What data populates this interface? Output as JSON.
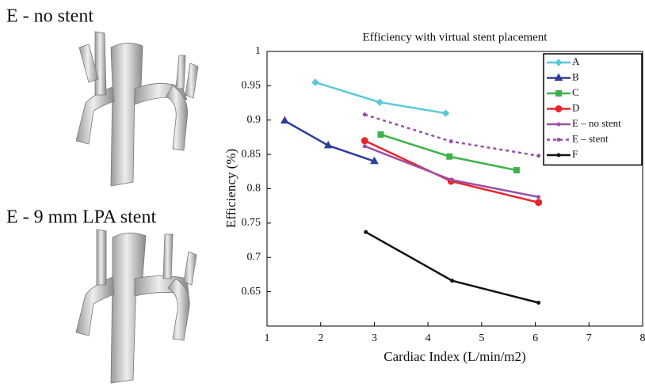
{
  "panel_labels": [
    "E - no stent",
    "E - 9 mm LPA stent"
  ],
  "chart_data": {
    "type": "line",
    "title": "Efficiency with virtual stent placement",
    "x_label": "Cardiac Index (L/min/m2)",
    "y_label": "Efficiency (%)",
    "xlim": [
      1,
      8
    ],
    "xticks": [
      1,
      2,
      3,
      4,
      5,
      6,
      7,
      8
    ],
    "ylim": [
      0.6,
      1
    ],
    "yticks": [
      0.65,
      0.7,
      0.75,
      0.8,
      0.85,
      0.9,
      0.95,
      1
    ],
    "legend": "upper right",
    "series": [
      {
        "name": "A",
        "color": "#5bc8d8",
        "marker": "diamond",
        "dashed": false,
        "x": [
          1.9,
          3.1,
          4.33
        ],
        "values": [
          0.955,
          0.926,
          0.91
        ]
      },
      {
        "name": "B",
        "color": "#2e3d9a",
        "marker": "triangle",
        "dashed": false,
        "x": [
          1.33,
          2.14,
          3.0
        ],
        "values": [
          0.899,
          0.863,
          0.84
        ]
      },
      {
        "name": "C",
        "color": "#3cb34a",
        "marker": "square",
        "dashed": false,
        "x": [
          3.12,
          4.4,
          5.65
        ],
        "values": [
          0.879,
          0.847,
          0.827
        ]
      },
      {
        "name": "D",
        "color": "#e8252a",
        "marker": "circle",
        "dashed": false,
        "x": [
          2.82,
          4.43,
          6.06
        ],
        "values": [
          0.87,
          0.811,
          0.78
        ]
      },
      {
        "name": "E – no stent",
        "color": "#9b4fa8",
        "marker": "dot",
        "dashed": false,
        "x": [
          2.82,
          4.43,
          6.06
        ],
        "values": [
          0.862,
          0.813,
          0.788
        ]
      },
      {
        "name": "E – stent",
        "color": "#9b4fa8",
        "marker": "dot",
        "dashed": true,
        "x": [
          2.82,
          4.43,
          6.06
        ],
        "values": [
          0.908,
          0.869,
          0.848
        ]
      },
      {
        "name": "F",
        "color": "#111111",
        "marker": "dot",
        "dashed": false,
        "x": [
          2.84,
          4.45,
          6.06
        ],
        "values": [
          0.737,
          0.666,
          0.634
        ]
      }
    ]
  }
}
